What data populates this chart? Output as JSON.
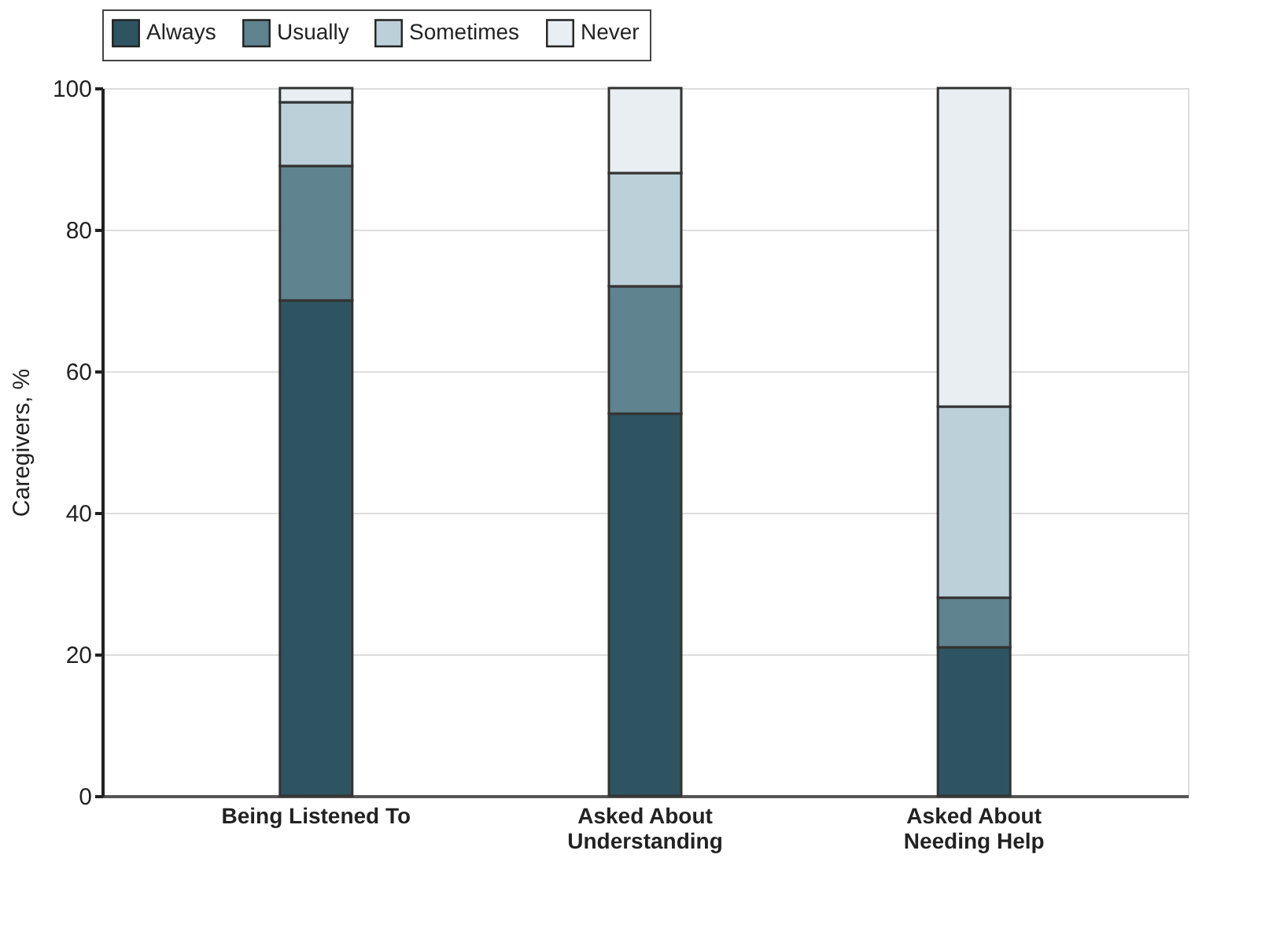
{
  "chart_data": {
    "type": "bar",
    "stacked": true,
    "ylabel": "Caregivers, %",
    "categories": [
      "Being Listened To",
      "Asked About\nUnderstanding",
      "Asked About\nNeeding Help"
    ],
    "series": [
      {
        "name": "Always",
        "color": "#2e5461",
        "values": [
          70,
          54,
          21
        ]
      },
      {
        "name": "Usually",
        "color": "#5f838f",
        "values": [
          19,
          18,
          7
        ]
      },
      {
        "name": "Sometimes",
        "color": "#bcd0d9",
        "values": [
          9,
          16,
          27
        ]
      },
      {
        "name": "Never",
        "color": "#e9eef2",
        "values": [
          2,
          12,
          45
        ]
      }
    ],
    "ylim": [
      0,
      100
    ],
    "yticks": [
      0,
      20,
      40,
      60,
      80,
      100
    ],
    "grid": "y",
    "legend": "top"
  }
}
